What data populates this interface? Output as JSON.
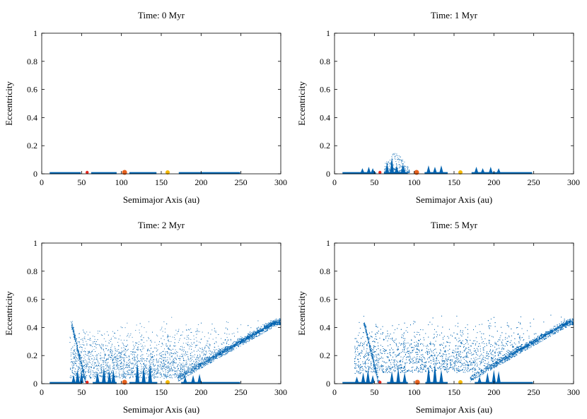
{
  "chart_data": [
    {
      "type": "scatter",
      "title": "Time: 0 Myr",
      "xlabel": "Semimajor Axis (au)",
      "ylabel": "Eccentricity",
      "xlim": [
        0,
        300
      ],
      "ylim": [
        0,
        1
      ],
      "xticks": [
        0,
        50,
        100,
        150,
        200,
        250,
        300
      ],
      "yticks": [
        0,
        0.2,
        0.4,
        0.6,
        0.8,
        1
      ],
      "yticklabels": [
        "0",
        "0.2",
        "0.4",
        "0.6",
        "0.8",
        "1"
      ],
      "grid": false,
      "belt_segments": [
        [
          10,
          49
        ],
        [
          62,
          94
        ],
        [
          110,
          144
        ],
        [
          172,
          249
        ]
      ],
      "planets": [
        {
          "a": 57,
          "e": 0.01,
          "color": "#e8281e",
          "size": "small"
        },
        {
          "a": 104,
          "e": 0.01,
          "color": "#e8621e",
          "size": "large"
        },
        {
          "a": 158,
          "e": 0.01,
          "color": "#f5b800",
          "size": "medium"
        }
      ],
      "particle_color": "#0063b0"
    },
    {
      "type": "scatter",
      "title": "Time: 1 Myr",
      "xlabel": "Semimajor Axis (au)",
      "ylabel": "Eccentricity",
      "xlim": [
        0,
        300
      ],
      "ylim": [
        0,
        1
      ],
      "xticks": [
        0,
        50,
        100,
        150,
        200,
        250,
        300
      ],
      "yticks": [
        0,
        0.2,
        0.4,
        0.6,
        0.8,
        1
      ],
      "yticklabels": [
        "0",
        "0.2",
        "0.4",
        "0.6",
        "0.8",
        "1"
      ],
      "grid": false,
      "belt_segments": [
        [
          10,
          52
        ],
        [
          62,
          92
        ],
        [
          113,
          142
        ],
        [
          172,
          248
        ]
      ],
      "spikes": [
        [
          35,
          0.04
        ],
        [
          43,
          0.05
        ],
        [
          48,
          0.04
        ],
        [
          66,
          0.08
        ],
        [
          72,
          0.12
        ],
        [
          78,
          0.06
        ],
        [
          86,
          0.07
        ],
        [
          118,
          0.06
        ],
        [
          126,
          0.05
        ],
        [
          134,
          0.06
        ],
        [
          178,
          0.05
        ],
        [
          186,
          0.04
        ],
        [
          196,
          0.05
        ],
        [
          206,
          0.04
        ]
      ],
      "planets": [
        {
          "a": 57,
          "e": 0.01,
          "color": "#e8281e",
          "size": "small"
        },
        {
          "a": 103,
          "e": 0.01,
          "color": "#e8621e",
          "size": "large"
        },
        {
          "a": 158,
          "e": 0.01,
          "color": "#f5b800",
          "size": "medium"
        }
      ],
      "particle_color": "#0063b0"
    },
    {
      "type": "scatter",
      "title": "Time: 2 Myr",
      "xlabel": "Semimajor Axis (au)",
      "ylabel": "Eccentricity",
      "xlim": [
        0,
        300
      ],
      "ylim": [
        0,
        1
      ],
      "xticks": [
        0,
        50,
        100,
        150,
        200,
        250,
        300
      ],
      "yticks": [
        0,
        0.2,
        0.4,
        0.6,
        0.8,
        1
      ],
      "yticklabels": [
        "0",
        "0.2",
        "0.4",
        "0.6",
        "0.8",
        "1"
      ],
      "grid": false,
      "belt_segments": [
        [
          10,
          50
        ],
        [
          64,
          94
        ],
        [
          110,
          145
        ],
        [
          175,
          249
        ]
      ],
      "spikes": [
        [
          40,
          0.06
        ],
        [
          45,
          0.1
        ],
        [
          50,
          0.09
        ],
        [
          70,
          0.08
        ],
        [
          78,
          0.12
        ],
        [
          85,
          0.09
        ],
        [
          90,
          0.1
        ],
        [
          120,
          0.15
        ],
        [
          128,
          0.12
        ],
        [
          136,
          0.14
        ],
        [
          180,
          0.05
        ],
        [
          190,
          0.06
        ],
        [
          198,
          0.07
        ]
      ],
      "planets": [
        {
          "a": 57,
          "e": 0.01,
          "color": "#e8281e",
          "size": "small"
        },
        {
          "a": 104,
          "e": 0.01,
          "color": "#e8621e",
          "size": "large"
        },
        {
          "a": 158,
          "e": 0.01,
          "color": "#f5b800",
          "size": "medium"
        }
      ],
      "particle_color": "#0063b0"
    },
    {
      "type": "scatter",
      "title": "Time: 5 Myr",
      "xlabel": "Semimajor Axis (au)",
      "ylabel": "Eccentricity",
      "xlim": [
        0,
        300
      ],
      "ylim": [
        0,
        1
      ],
      "xticks": [
        0,
        50,
        100,
        150,
        200,
        250,
        300
      ],
      "yticks": [
        0,
        0.2,
        0.4,
        0.6,
        0.8,
        1
      ],
      "yticklabels": [
        "0",
        "0.2",
        "0.4",
        "0.6",
        "0.8",
        "1"
      ],
      "grid": false,
      "belt_segments": [
        [
          10,
          48
        ],
        [
          66,
          92
        ],
        [
          114,
          142
        ],
        [
          176,
          249
        ]
      ],
      "spikes": [
        [
          28,
          0.05
        ],
        [
          36,
          0.08
        ],
        [
          42,
          0.1
        ],
        [
          48,
          0.06
        ],
        [
          72,
          0.09
        ],
        [
          80,
          0.11
        ],
        [
          88,
          0.08
        ],
        [
          118,
          0.12
        ],
        [
          126,
          0.14
        ],
        [
          134,
          0.1
        ],
        [
          182,
          0.05
        ],
        [
          192,
          0.08
        ],
        [
          200,
          0.1
        ],
        [
          206,
          0.09
        ]
      ],
      "planets": [
        {
          "a": 57,
          "e": 0.01,
          "color": "#e8281e",
          "size": "small"
        },
        {
          "a": 104,
          "e": 0.01,
          "color": "#e8621e",
          "size": "large"
        },
        {
          "a": 158,
          "e": 0.01,
          "color": "#f5b800",
          "size": "medium"
        }
      ],
      "particle_color": "#0063b0"
    }
  ]
}
